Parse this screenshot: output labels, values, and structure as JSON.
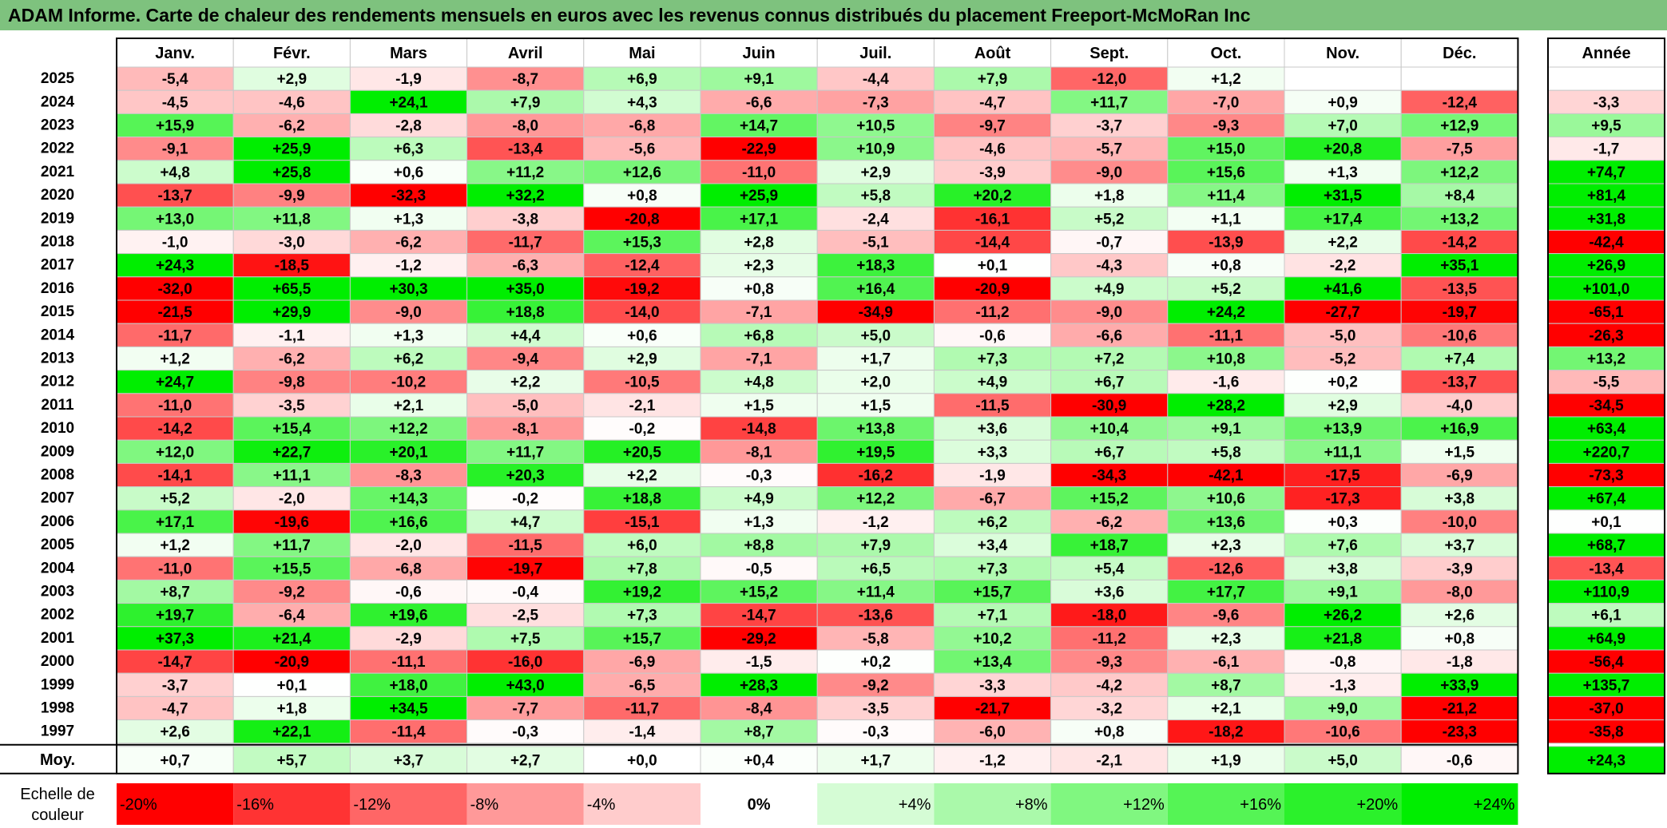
{
  "title": "ADAM Informe. Carte de chaleur des rendements mensuels en euros avec les revenus connus distribués du placement Freeport-McMoRan Inc",
  "chart_data": {
    "type": "heatmap",
    "columns": [
      "Janv.",
      "Févr.",
      "Mars",
      "Avril",
      "Mai",
      "Juin",
      "Juil.",
      "Août",
      "Sept.",
      "Oct.",
      "Nov.",
      "Déc."
    ],
    "year_header": "Année",
    "rows": [
      {
        "year": "2025",
        "values": [
          "-5,4",
          "+2,9",
          "-1,9",
          "-8,7",
          "+6,9",
          "+9,1",
          "-4,4",
          "+7,9",
          "-12,0",
          "+1,2",
          "",
          ""
        ],
        "annual": ""
      },
      {
        "year": "2024",
        "values": [
          "-4,5",
          "-4,6",
          "+24,1",
          "+7,9",
          "+4,3",
          "-6,6",
          "-7,3",
          "-4,7",
          "+11,7",
          "-7,0",
          "+0,9",
          "-12,4"
        ],
        "annual": "-3,3"
      },
      {
        "year": "2023",
        "values": [
          "+15,9",
          "-6,2",
          "-2,8",
          "-8,0",
          "-6,8",
          "+14,7",
          "+10,5",
          "-9,7",
          "-3,7",
          "-9,3",
          "+7,0",
          "+12,9"
        ],
        "annual": "+9,5"
      },
      {
        "year": "2022",
        "values": [
          "-9,1",
          "+25,9",
          "+6,3",
          "-13,4",
          "-5,6",
          "-22,9",
          "+10,9",
          "-4,6",
          "-5,7",
          "+15,0",
          "+20,8",
          "-7,5"
        ],
        "annual": "-1,7"
      },
      {
        "year": "2021",
        "values": [
          "+4,8",
          "+25,8",
          "+0,6",
          "+11,2",
          "+12,6",
          "-11,0",
          "+2,9",
          "-3,9",
          "-9,0",
          "+15,6",
          "+1,3",
          "+12,2"
        ],
        "annual": "+74,7"
      },
      {
        "year": "2020",
        "values": [
          "-13,7",
          "-9,9",
          "-32,3",
          "+32,2",
          "+0,8",
          "+25,9",
          "+5,8",
          "+20,2",
          "+1,8",
          "+11,4",
          "+31,5",
          "+8,4"
        ],
        "annual": "+81,4"
      },
      {
        "year": "2019",
        "values": [
          "+13,0",
          "+11,8",
          "+1,3",
          "-3,8",
          "-20,8",
          "+17,1",
          "-2,4",
          "-16,1",
          "+5,2",
          "+1,1",
          "+17,4",
          "+13,2"
        ],
        "annual": "+31,8"
      },
      {
        "year": "2018",
        "values": [
          "-1,0",
          "-3,0",
          "-6,2",
          "-11,7",
          "+15,3",
          "+2,8",
          "-5,1",
          "-14,4",
          "-0,7",
          "-13,9",
          "+2,2",
          "-14,2"
        ],
        "annual": "-42,4"
      },
      {
        "year": "2017",
        "values": [
          "+24,3",
          "-18,5",
          "-1,2",
          "-6,3",
          "-12,4",
          "+2,3",
          "+18,3",
          "+0,1",
          "-4,3",
          "+0,8",
          "-2,2",
          "+35,1"
        ],
        "annual": "+26,9"
      },
      {
        "year": "2016",
        "values": [
          "-32,0",
          "+65,5",
          "+30,3",
          "+35,0",
          "-19,2",
          "+0,8",
          "+16,4",
          "-20,9",
          "+4,9",
          "+5,2",
          "+41,6",
          "-13,5"
        ],
        "annual": "+101,0"
      },
      {
        "year": "2015",
        "values": [
          "-21,5",
          "+29,9",
          "-9,0",
          "+18,8",
          "-14,0",
          "-7,1",
          "-34,9",
          "-11,2",
          "-9,0",
          "+24,2",
          "-27,7",
          "-19,7"
        ],
        "annual": "-65,1"
      },
      {
        "year": "2014",
        "values": [
          "-11,7",
          "-1,1",
          "+1,3",
          "+4,4",
          "+0,6",
          "+6,8",
          "+5,0",
          "-0,6",
          "-6,6",
          "-11,1",
          "-5,0",
          "-10,6"
        ],
        "annual": "-26,3"
      },
      {
        "year": "2013",
        "values": [
          "+1,2",
          "-6,2",
          "+6,2",
          "-9,4",
          "+2,9",
          "-7,1",
          "+1,7",
          "+7,3",
          "+7,2",
          "+10,8",
          "-5,2",
          "+7,4"
        ],
        "annual": "+13,2"
      },
      {
        "year": "2012",
        "values": [
          "+24,7",
          "-9,8",
          "-10,2",
          "+2,2",
          "-10,5",
          "+4,8",
          "+2,0",
          "+4,9",
          "+6,7",
          "-1,6",
          "+0,2",
          "-13,7"
        ],
        "annual": "-5,5"
      },
      {
        "year": "2011",
        "values": [
          "-11,0",
          "-3,5",
          "+2,1",
          "-5,0",
          "-2,1",
          "+1,5",
          "+1,5",
          "-11,5",
          "-30,9",
          "+28,2",
          "+2,9",
          "-4,0"
        ],
        "annual": "-34,5"
      },
      {
        "year": "2010",
        "values": [
          "-14,2",
          "+15,4",
          "+12,2",
          "-8,1",
          "-0,2",
          "-14,8",
          "+13,8",
          "+3,6",
          "+10,4",
          "+9,1",
          "+13,9",
          "+16,9"
        ],
        "annual": "+63,4"
      },
      {
        "year": "2009",
        "values": [
          "+12,0",
          "+22,7",
          "+20,1",
          "+11,7",
          "+20,5",
          "-8,1",
          "+19,5",
          "+3,3",
          "+6,7",
          "+5,8",
          "+11,1",
          "+1,5"
        ],
        "annual": "+220,7"
      },
      {
        "year": "2008",
        "values": [
          "-14,1",
          "+11,1",
          "-8,3",
          "+20,3",
          "+2,2",
          "-0,3",
          "-16,2",
          "-1,9",
          "-34,3",
          "-42,1",
          "-17,5",
          "-6,9"
        ],
        "annual": "-73,3"
      },
      {
        "year": "2007",
        "values": [
          "+5,2",
          "-2,0",
          "+14,3",
          "-0,2",
          "+18,8",
          "+4,9",
          "+12,2",
          "-6,7",
          "+15,2",
          "+10,6",
          "-17,3",
          "+3,8"
        ],
        "annual": "+67,4"
      },
      {
        "year": "2006",
        "values": [
          "+17,1",
          "-19,6",
          "+16,6",
          "+4,7",
          "-15,1",
          "+1,3",
          "-1,2",
          "+6,2",
          "-6,2",
          "+13,6",
          "+0,3",
          "-10,0"
        ],
        "annual": "+0,1"
      },
      {
        "year": "2005",
        "values": [
          "+1,2",
          "+11,7",
          "-2,0",
          "-11,5",
          "+6,0",
          "+8,8",
          "+7,9",
          "+3,4",
          "+18,7",
          "+2,3",
          "+7,6",
          "+3,7"
        ],
        "annual": "+68,7"
      },
      {
        "year": "2004",
        "values": [
          "-11,0",
          "+15,5",
          "-6,8",
          "-19,7",
          "+7,8",
          "-0,5",
          "+6,5",
          "+7,3",
          "+5,4",
          "-12,6",
          "+3,8",
          "-3,9"
        ],
        "annual": "-13,4"
      },
      {
        "year": "2003",
        "values": [
          "+8,7",
          "-9,2",
          "-0,6",
          "-0,4",
          "+19,2",
          "+15,2",
          "+11,4",
          "+15,7",
          "+3,6",
          "+17,7",
          "+9,1",
          "-8,0"
        ],
        "annual": "+110,9"
      },
      {
        "year": "2002",
        "values": [
          "+19,7",
          "-6,4",
          "+19,6",
          "-2,5",
          "+7,3",
          "-14,7",
          "-13,6",
          "+7,1",
          "-18,0",
          "-9,6",
          "+26,2",
          "+2,6"
        ],
        "annual": "+6,1"
      },
      {
        "year": "2001",
        "values": [
          "+37,3",
          "+21,4",
          "-2,9",
          "+7,5",
          "+15,7",
          "-29,2",
          "-5,8",
          "+10,2",
          "-11,2",
          "+2,3",
          "+21,8",
          "+0,8"
        ],
        "annual": "+64,9"
      },
      {
        "year": "2000",
        "values": [
          "-14,7",
          "-20,9",
          "-11,1",
          "-16,0",
          "-6,9",
          "-1,5",
          "+0,2",
          "+13,4",
          "-9,3",
          "-6,1",
          "-0,8",
          "-1,8"
        ],
        "annual": "-56,4"
      },
      {
        "year": "1999",
        "values": [
          "-3,7",
          "+0,1",
          "+18,0",
          "+43,0",
          "-6,5",
          "+28,3",
          "-9,2",
          "-3,3",
          "-4,2",
          "+8,7",
          "-1,3",
          "+33,9"
        ],
        "annual": "+135,7"
      },
      {
        "year": "1998",
        "values": [
          "-4,7",
          "+1,8",
          "+34,5",
          "-7,7",
          "-11,7",
          "-8,4",
          "-3,5",
          "-21,7",
          "-3,2",
          "+2,1",
          "+9,0",
          "-21,2"
        ],
        "annual": "-37,0"
      },
      {
        "year": "1997",
        "values": [
          "+2,6",
          "+22,1",
          "-11,4",
          "-0,3",
          "-1,4",
          "+8,7",
          "-0,3",
          "-6,0",
          "+0,8",
          "-18,2",
          "-10,6",
          "-23,3"
        ],
        "annual": "-35,8"
      }
    ],
    "average": {
      "label": "Moy.",
      "values": [
        "+0,7",
        "+5,7",
        "+3,7",
        "+2,7",
        "+0,0",
        "+0,4",
        "+1,7",
        "-1,2",
        "-2,1",
        "+1,9",
        "+5,0",
        "-0,6"
      ],
      "annual": "+24,3"
    },
    "scale": {
      "label_line1": "Echelle de",
      "label_line2": "couleur",
      "labels": [
        "-20%",
        "-16%",
        "-12%",
        "-8%",
        "-4%",
        "0%",
        "+4%",
        "+8%",
        "+12%",
        "+16%",
        "+20%",
        "+24%"
      ],
      "values": [
        -20,
        -16,
        -12,
        -8,
        -4,
        0,
        4,
        8,
        12,
        16,
        20,
        24
      ]
    },
    "colors": {
      "negative_max": "#ff0000",
      "neutral": "#ffffff",
      "positive_max": "#00ee00",
      "title_bar": "#7ec27e"
    }
  }
}
